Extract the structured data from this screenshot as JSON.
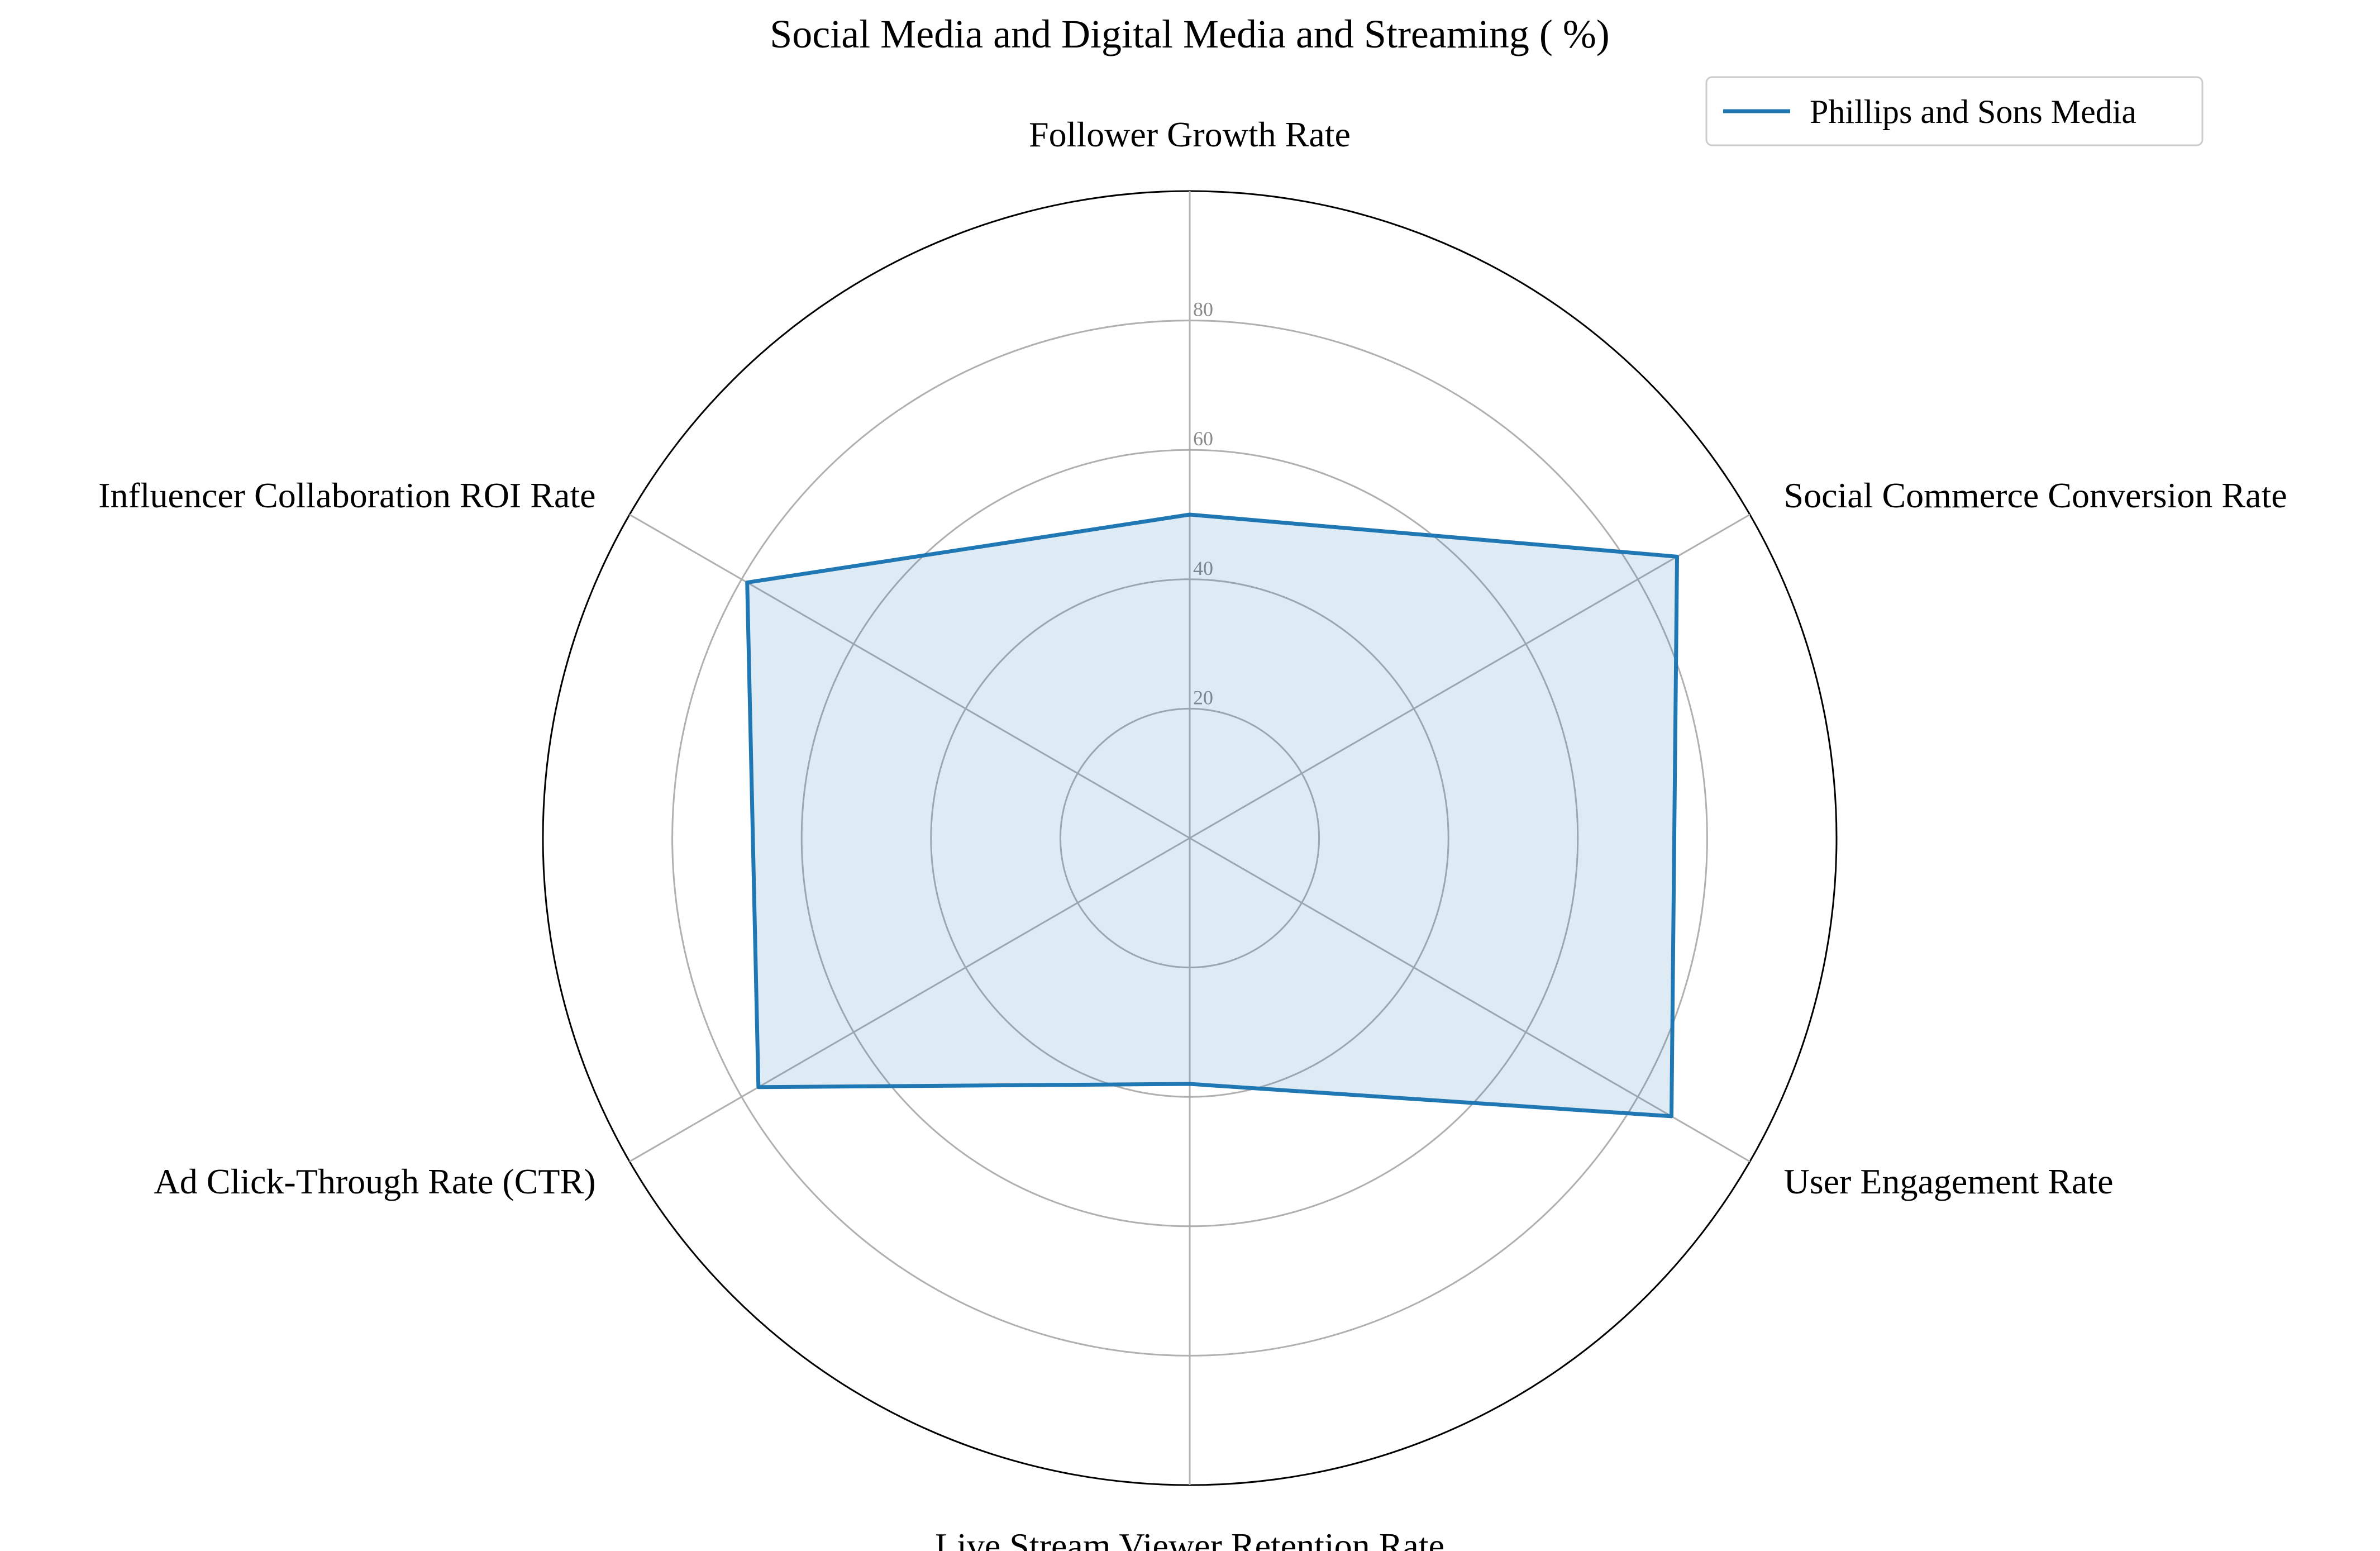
{
  "chart_data": {
    "type": "radar",
    "title": "Social Media and Digital Media and Streaming ( %)",
    "axes": [
      "Follower Growth Rate",
      "Social Commerce Conversion Rate",
      "User Engagement Rate",
      "Live Stream Viewer Retention Rate",
      "Ad Click-Through Rate (CTR)",
      "Influencer Collaboration ROI Rate"
    ],
    "r_ticks": [
      20,
      40,
      60,
      80
    ],
    "r_max": 100,
    "grid": true,
    "legend_position": "top-right",
    "series": [
      {
        "name": "Phillips and Sons Media",
        "values": [
          50,
          87,
          86,
          38,
          77,
          79
        ],
        "color": "#1f77b4"
      }
    ]
  }
}
